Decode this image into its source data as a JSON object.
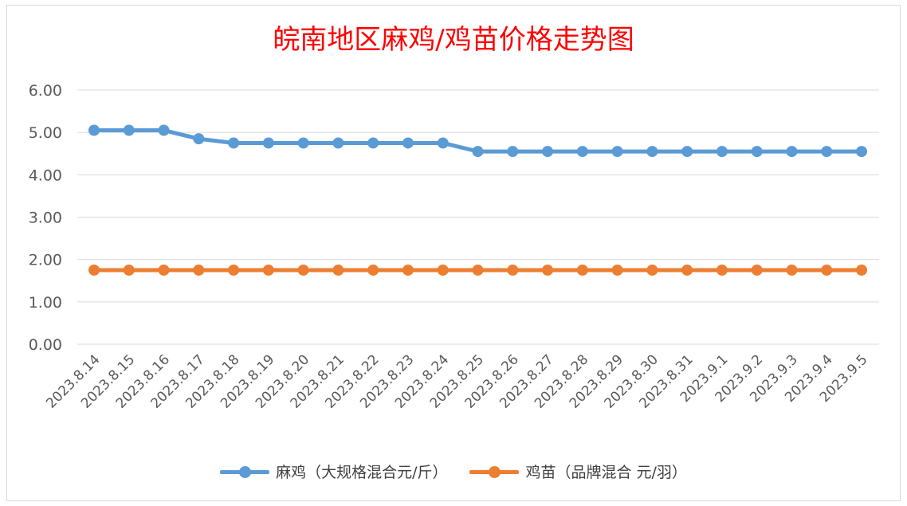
{
  "chart_data": {
    "type": "line",
    "title": "皖南地区麻鸡/鸡苗价格走势图",
    "categories": [
      "2023.8.14",
      "2023.8.15",
      "2023.8.16",
      "2023.8.17",
      "2023.8.18",
      "2023.8.19",
      "2023.8.20",
      "2023.8.21",
      "2023.8.22",
      "2023.8.23",
      "2023.8.24",
      "2023.8.25",
      "2023.8.26",
      "2023.8.27",
      "2023.8.28",
      "2023.8.29",
      "2023.8.30",
      "2023.8.31",
      "2023.9.1",
      "2023.9.2",
      "2023.9.3",
      "2023.9.4",
      "2023.9.5"
    ],
    "series": [
      {
        "name": "麻鸡（大规格混合元/斤）",
        "color": "#5b9bd5",
        "values": [
          5.05,
          5.05,
          5.05,
          4.85,
          4.75,
          4.75,
          4.75,
          4.75,
          4.75,
          4.75,
          4.75,
          4.55,
          4.55,
          4.55,
          4.55,
          4.55,
          4.55,
          4.55,
          4.55,
          4.55,
          4.55,
          4.55,
          4.55
        ]
      },
      {
        "name": "鸡苗（品牌混合 元/羽）",
        "color": "#ed7d31",
        "values": [
          1.75,
          1.75,
          1.75,
          1.75,
          1.75,
          1.75,
          1.75,
          1.75,
          1.75,
          1.75,
          1.75,
          1.75,
          1.75,
          1.75,
          1.75,
          1.75,
          1.75,
          1.75,
          1.75,
          1.75,
          1.75,
          1.75,
          1.75
        ]
      }
    ],
    "yticks": [
      "0.00",
      "1.00",
      "2.00",
      "3.00",
      "4.00",
      "5.00",
      "6.00"
    ],
    "ylim": [
      0,
      6
    ],
    "grid": true,
    "legend": "bottom"
  }
}
